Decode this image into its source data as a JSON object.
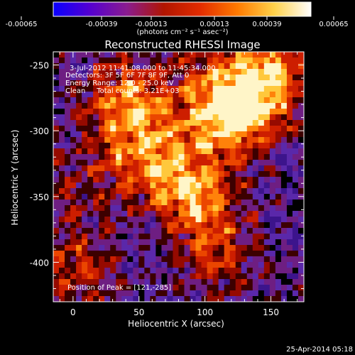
{
  "colorbar": {
    "tick_labels": [
      "-0.00065",
      "-0.00039",
      "-0.00013",
      "0.00013",
      "0.00039",
      "0.00065"
    ],
    "units_label": "(photons cm⁻² s⁻¹ asec⁻²)",
    "stops": [
      "#0a00ff",
      "#5500d0",
      "#8a1c8f",
      "#b11500",
      "#e22c00",
      "#ff7a00",
      "#ffd24a",
      "#ffffff"
    ]
  },
  "plot": {
    "title": "Reconstructed RHESSI Image",
    "xlabel": "Heliocentric X (arcsec)",
    "ylabel": "Heliocentric Y (arcsec)",
    "x_ticks": [
      "0",
      "50",
      "100",
      "150"
    ],
    "y_ticks": [
      "-250",
      "-300",
      "-350",
      "-400"
    ],
    "xlim": [
      -15,
      175
    ],
    "ylim": [
      -430,
      -240
    ]
  },
  "info": {
    "line1": "3-Jul-2012 11:41:08.000 to 11:45:34.000",
    "line2": "Detectors: 3F 5F 6F 7F 8F 9F, Att 0",
    "line3": "Energy Range: 12.0 - 25.0 keV",
    "line4": "Clean     Total counts: 3.21E+03",
    "peak": "Position of Peak = [121,-285]"
  },
  "footer": {
    "date": "25-Apr-2014 05:18"
  },
  "image_data": {
    "peak": [
      121,
      -285
    ],
    "hotspots": [
      {
        "x": 121,
        "y": -285,
        "amp": 1.0
      },
      {
        "x": 93,
        "y": -348,
        "amp": 0.75
      },
      {
        "x": 40,
        "y": -275,
        "amp": 0.55
      },
      {
        "x": 150,
        "y": -260,
        "amp": 0.6
      },
      {
        "x": 60,
        "y": -320,
        "amp": 0.5
      },
      {
        "x": 110,
        "y": -395,
        "amp": 0.45
      },
      {
        "x": 5,
        "y": -410,
        "amp": 0.4
      }
    ]
  }
}
